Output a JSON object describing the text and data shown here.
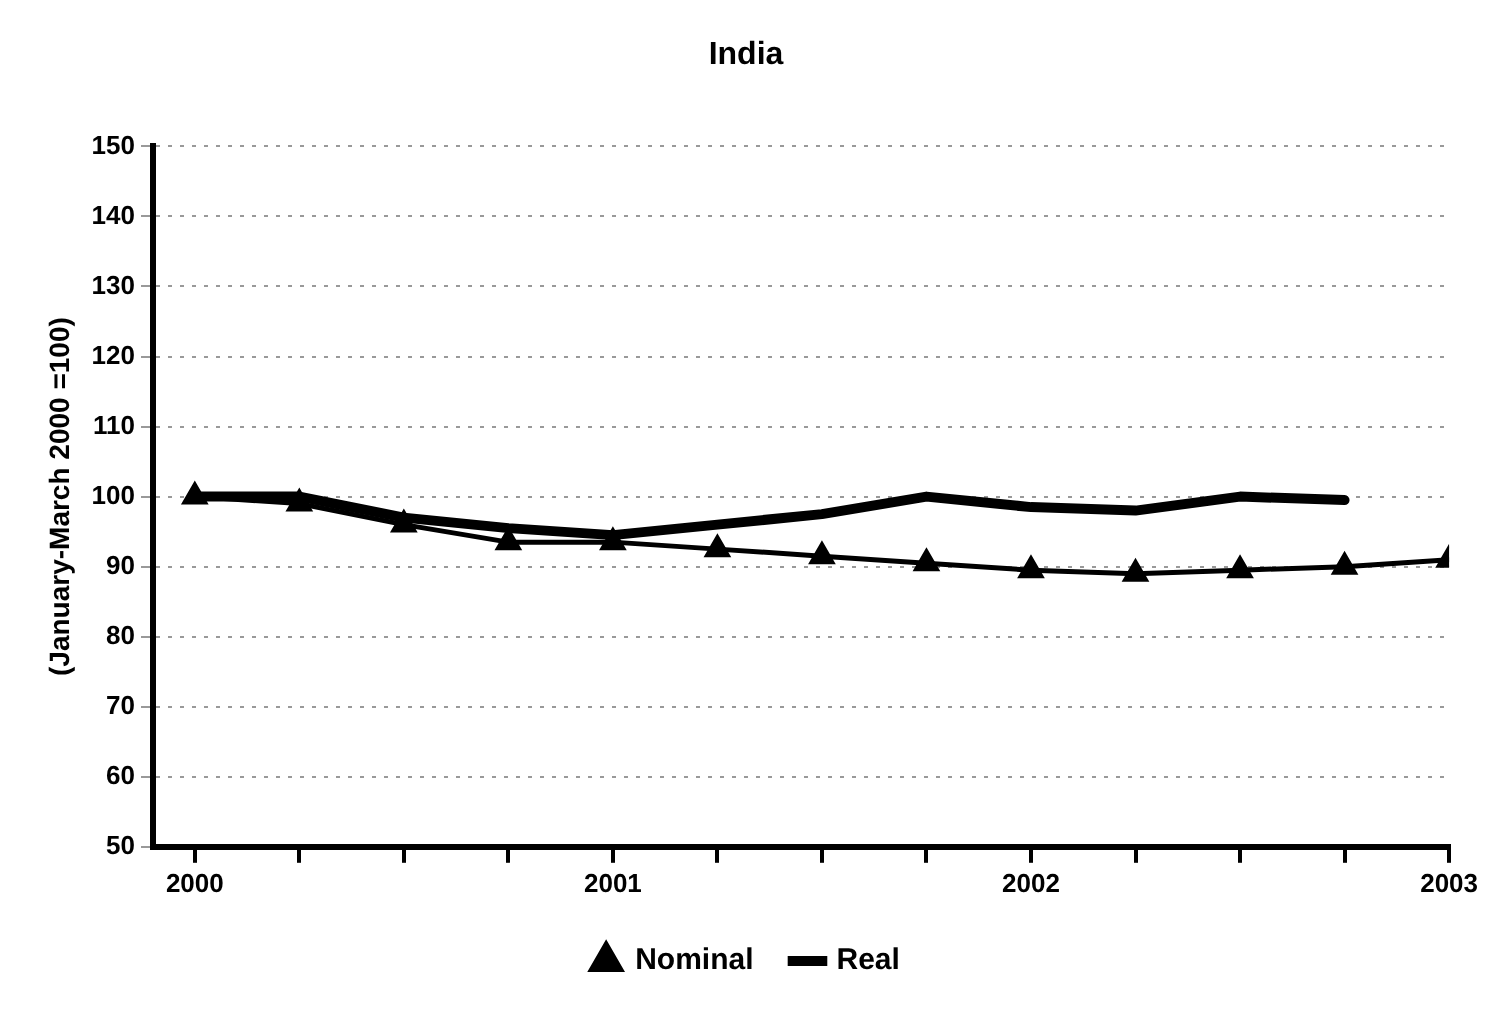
{
  "chart_data": {
    "type": "line",
    "title": "India",
    "ylabel": "(January-March 2000 =100)",
    "x": [
      2000,
      2000.25,
      2000.5,
      2000.75,
      2001,
      2001.25,
      2001.5,
      2001.75,
      2002,
      2002.25,
      2002.5,
      2002.75,
      2003
    ],
    "series": [
      {
        "name": "Nominal",
        "color": "#000000",
        "marker": "triangle",
        "values": [
          100,
          99,
          96,
          93.5,
          93.5,
          92.5,
          91.5,
          90.5,
          89.5,
          89,
          89.5,
          90,
          91
        ]
      },
      {
        "name": "Real",
        "color": "#000000",
        "marker": "none",
        "values": [
          100,
          100,
          97,
          95.5,
          94.5,
          96,
          97.5,
          100,
          98.5,
          98,
          100,
          99.5,
          null
        ]
      }
    ],
    "xlim": [
      1999.9,
      2003
    ],
    "xticks": [
      2000,
      {
        "value": 2000.25,
        "label": null
      },
      {
        "value": 2000.5,
        "label": null
      },
      {
        "value": 2000.75,
        "label": null
      },
      2001,
      {
        "value": 2001.25,
        "label": null
      },
      {
        "value": 2001.5,
        "label": null
      },
      {
        "value": 2001.75,
        "label": null
      },
      2002,
      {
        "value": 2002.25,
        "label": null
      },
      {
        "value": 2002.5,
        "label": null
      },
      {
        "value": 2002.75,
        "label": null
      },
      2003
    ],
    "ylim": [
      50,
      150
    ],
    "yticks": [
      50,
      60,
      70,
      80,
      90,
      100,
      110,
      120,
      130,
      140,
      150
    ],
    "grid": "y",
    "legend": "bottom",
    "line_style": "solid"
  }
}
